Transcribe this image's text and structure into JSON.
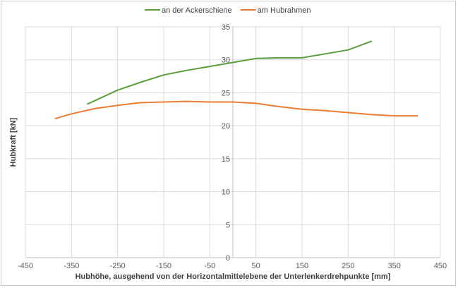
{
  "chart_data": {
    "type": "line",
    "xlabel": "Hubhöhe, ausgehend von der Horizontalmittelebene der Unterlenkerdrehpunkte [mm]",
    "ylabel": "Hubkraft [kN]",
    "xlim": [
      -450,
      450
    ],
    "ylim": [
      0,
      35
    ],
    "xticks": [
      -450,
      -350,
      -250,
      -150,
      -50,
      50,
      150,
      250,
      350,
      450
    ],
    "xtick_labels": [
      "-450",
      "-350",
      "-250",
      "-150",
      "-50",
      "50",
      "150",
      "250",
      "350",
      "450"
    ],
    "yticks": [
      0,
      5,
      10,
      15,
      20,
      25,
      30,
      35
    ],
    "ytick_labels": [
      "0",
      "5",
      "10",
      "15",
      "20",
      "25",
      "30",
      "35"
    ],
    "grid": true,
    "legend_position": "top-center",
    "series": [
      {
        "name": "an der Ackerschiene",
        "color": "#5a9e3e",
        "x": [
          -315,
          -250,
          -200,
          -150,
          -100,
          -50,
          0,
          50,
          100,
          150,
          200,
          250,
          300
        ],
        "y": [
          23.3,
          25.4,
          26.6,
          27.7,
          28.4,
          29.0,
          29.6,
          30.2,
          30.3,
          30.3,
          30.9,
          31.5,
          32.8
        ]
      },
      {
        "name": "am Hubrahmen",
        "color": "#ed7d31",
        "x": [
          -385,
          -350,
          -300,
          -250,
          -200,
          -150,
          -100,
          -50,
          0,
          50,
          100,
          150,
          200,
          250,
          300,
          350,
          400
        ],
        "y": [
          21.1,
          21.8,
          22.6,
          23.1,
          23.5,
          23.6,
          23.7,
          23.6,
          23.6,
          23.4,
          22.9,
          22.5,
          22.3,
          22.0,
          21.7,
          21.5,
          21.5
        ]
      }
    ]
  }
}
